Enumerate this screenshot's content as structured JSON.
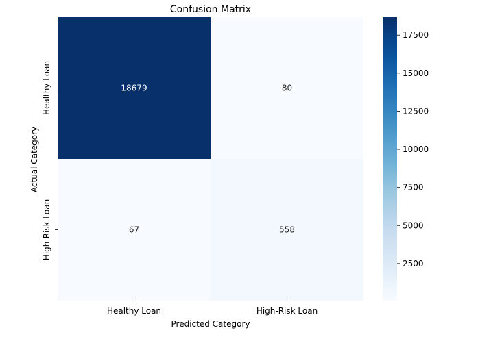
{
  "chart_data": {
    "type": "heatmap",
    "title": "Confusion Matrix",
    "xlabel": "Predicted Category",
    "ylabel": "Actual Category",
    "x_categories": [
      "Healthy Loan",
      "High-Risk Loan"
    ],
    "y_categories": [
      "Healthy Loan",
      "High-Risk Loan"
    ],
    "values": [
      [
        18679,
        80
      ],
      [
        67,
        558
      ]
    ],
    "annotations": true,
    "colormap": "Blues",
    "color_range": [
      67,
      18679
    ],
    "colorbar": {
      "ticks": [
        2500,
        5000,
        7500,
        10000,
        12500,
        15000,
        17500
      ],
      "tick_labels": [
        "2500",
        "5000",
        "7500",
        "10000",
        "12500",
        "15000",
        "17500"
      ]
    },
    "colors": {
      "low": "#f7fbff",
      "high": "#08306b",
      "text_dark": "#262626",
      "text_light": "#ffffff"
    }
  }
}
